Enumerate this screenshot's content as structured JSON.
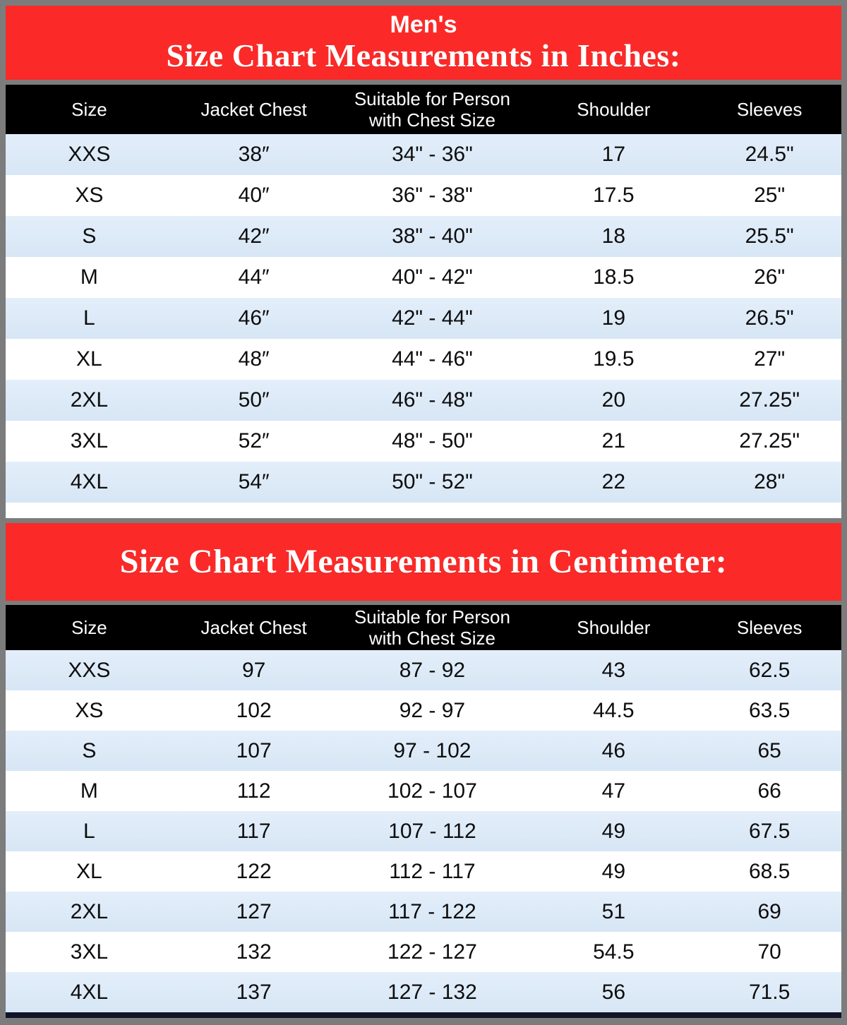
{
  "colors": {
    "page_border_grey": "#7c7c7c",
    "banner_red": "#fb2a28",
    "header_black": "#000000",
    "row_light_blue": "#d9e8f6",
    "row_white": "#ffffff",
    "bottom_bar_navy": "#12122a",
    "text_white": "#ffffff",
    "text_black": "#0d0d0d"
  },
  "banner_inches": {
    "prefix": "Men's",
    "title": "Size Chart Measurements in Inches:"
  },
  "banner_cm": {
    "title": "Size Chart Measurements in Centimeter:"
  },
  "tables": [
    {
      "id": "inches",
      "columns": [
        "Size",
        "Jacket Chest",
        "Suitable for Person\nwith Chest Size",
        "Shoulder",
        "Sleeves"
      ],
      "rows": [
        [
          "XXS",
          "38″",
          "34\" - 36\"",
          "17",
          "24.5\""
        ],
        [
          "XS",
          "40″",
          "36\" - 38\"",
          "17.5",
          "25\""
        ],
        [
          "S",
          "42″",
          "38\" - 40\"",
          "18",
          "25.5\""
        ],
        [
          "M",
          "44″",
          "40\" - 42\"",
          "18.5",
          "26\""
        ],
        [
          "L",
          "46″",
          "42\" - 44\"",
          "19",
          "26.5\""
        ],
        [
          "XL",
          "48″",
          "44\" - 46\"",
          "19.5",
          "27\""
        ],
        [
          "2XL",
          "50″",
          "46\" - 48\"",
          "20",
          "27.25\""
        ],
        [
          "3XL",
          "52″",
          "48\" - 50\"",
          "21",
          "27.25\""
        ],
        [
          "4XL",
          "54″",
          "50\" - 52\"",
          "22",
          "28\""
        ]
      ]
    },
    {
      "id": "cm",
      "columns": [
        "Size",
        "Jacket Chest",
        "Suitable for Person\nwith Chest Size",
        "Shoulder",
        "Sleeves"
      ],
      "rows": [
        [
          "XXS",
          "97",
          "87 - 92",
          "43",
          "62.5"
        ],
        [
          "XS",
          "102",
          "92 - 97",
          "44.5",
          "63.5"
        ],
        [
          "S",
          "107",
          "97 - 102",
          "46",
          "65"
        ],
        [
          "M",
          "112",
          "102 - 107",
          "47",
          "66"
        ],
        [
          "L",
          "117",
          "107 - 112",
          "49",
          "67.5"
        ],
        [
          "XL",
          "122",
          "112 - 117",
          "49",
          "68.5"
        ],
        [
          "2XL",
          "127",
          "117 - 122",
          "51",
          "69"
        ],
        [
          "3XL",
          "132",
          "122 - 127",
          "54.5",
          "70"
        ],
        [
          "4XL",
          "137",
          "127 - 132",
          "56",
          "71.5"
        ]
      ]
    }
  ],
  "chart_data": {
    "type": "table",
    "tables": [
      {
        "title": "Men's Size Chart Measurements in Inches",
        "columns": [
          "Size",
          "Jacket Chest",
          "Suitable for Person with Chest Size",
          "Shoulder",
          "Sleeves"
        ],
        "rows": [
          [
            "XXS",
            38,
            "34-36",
            17,
            24.5
          ],
          [
            "XS",
            40,
            "36-38",
            17.5,
            25
          ],
          [
            "S",
            42,
            "38-40",
            18,
            25.5
          ],
          [
            "M",
            44,
            "40-42",
            18.5,
            26
          ],
          [
            "L",
            46,
            "42-44",
            19,
            26.5
          ],
          [
            "XL",
            48,
            "44-46",
            19.5,
            27
          ],
          [
            "2XL",
            50,
            "46-48",
            20,
            27.25
          ],
          [
            "3XL",
            52,
            "48-50",
            21,
            27.25
          ],
          [
            "4XL",
            54,
            "50-52",
            22,
            28
          ]
        ]
      },
      {
        "title": "Size Chart Measurements in Centimeter",
        "columns": [
          "Size",
          "Jacket Chest",
          "Suitable for Person with Chest Size",
          "Shoulder",
          "Sleeves"
        ],
        "rows": [
          [
            "XXS",
            97,
            "87-92",
            43,
            62.5
          ],
          [
            "XS",
            102,
            "92-97",
            44.5,
            63.5
          ],
          [
            "S",
            107,
            "97-102",
            46,
            65
          ],
          [
            "M",
            112,
            "102-107",
            47,
            66
          ],
          [
            "L",
            117,
            "107-112",
            49,
            67.5
          ],
          [
            "XL",
            122,
            "112-117",
            49,
            68.5
          ],
          [
            "2XL",
            127,
            "117-122",
            51,
            69
          ],
          [
            "3XL",
            132,
            "122-127",
            54.5,
            70
          ],
          [
            "4XL",
            137,
            "127-132",
            56,
            71.5
          ]
        ]
      }
    ]
  }
}
